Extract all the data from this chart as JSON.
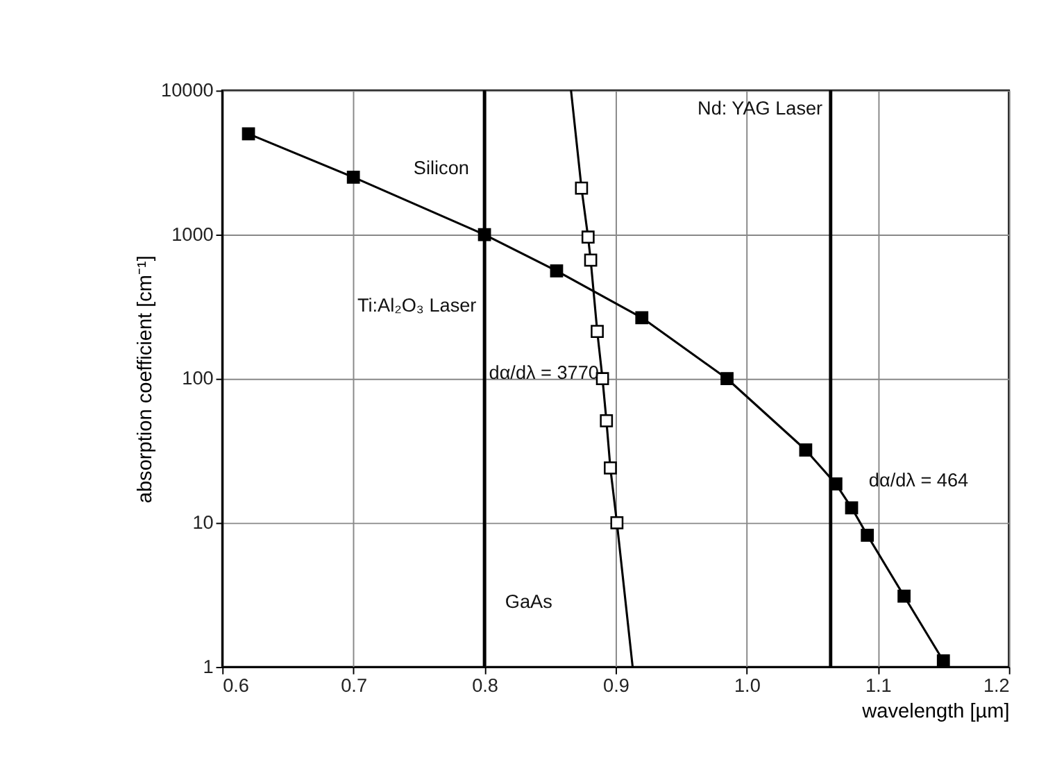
{
  "chart_data": {
    "type": "line",
    "xlabel": "wavelength [µm]",
    "ylabel": "absorption coefficient [cm⁻¹]",
    "xlim": [
      0.6,
      1.2
    ],
    "xticks": [
      0.6,
      0.7,
      0.8,
      0.9,
      {
        "value": 1.0,
        "label": "1.0"
      },
      1.1,
      1.2
    ],
    "ylim": [
      1,
      10000
    ],
    "yticks": [
      1,
      10,
      100,
      1000,
      10000
    ],
    "log": true,
    "grid": true,
    "marker": "square",
    "series": [
      {
        "color": "#000000",
        "x": [
          0.62,
          0.7,
          0.8,
          0.855,
          0.92,
          0.985,
          1.045,
          1.068,
          1.08,
          1.092,
          1.12,
          1.15
        ],
        "values": [
          5000,
          2500,
          1000,
          560,
          265,
          100,
          32,
          18.6,
          12.7,
          8.2,
          3.1,
          1.1
        ]
      },
      {
        "color": "#000000",
        "marker": "none",
        "x": [
          0.866,
          0.874,
          0.879,
          0.881,
          0.886,
          0.89,
          0.893,
          0.896,
          0.901,
          0.913
        ],
        "values": [
          10000,
          2100,
          960,
          665,
          213,
          100,
          51,
          24,
          10,
          1
        ]
      },
      {
        "color": "#000000",
        "type": "scatter",
        "x": [
          0.874,
          0.879,
          0.881,
          0.886,
          0.89,
          0.893,
          0.896,
          0.901
        ],
        "values": [
          2100,
          960,
          665,
          213,
          100,
          51,
          24,
          10
        ]
      }
    ],
    "ref_lines": [
      {
        "axis": "x",
        "value": 0.8,
        "label": "Ti:Al₂O₃ Laser"
      },
      {
        "axis": "x",
        "value": 1.064,
        "label": "Nd: YAG Laser"
      }
    ],
    "annotations": [
      "Silicon",
      "GaAs",
      "dα/dλ = 3770",
      "dα/dλ = 464"
    ]
  }
}
